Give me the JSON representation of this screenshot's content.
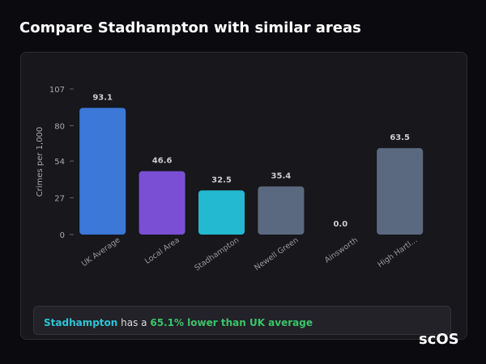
{
  "header": {
    "title": "Compare Stadhampton with similar areas"
  },
  "chart_data": {
    "type": "bar",
    "y_label": "Crimes per 1,000",
    "categories": [
      "UK Average",
      "Local Area",
      "Stadhampton",
      "Newell Green",
      "Ainsworth",
      "High Hartl..."
    ],
    "values": [
      93.1,
      46.6,
      32.5,
      35.4,
      0,
      63.5
    ],
    "value_labels": [
      "93.1",
      "46.6",
      "32.5",
      "35.4",
      "0.0",
      "63.5"
    ],
    "colors": [
      "#3b78d8",
      "#7a4fd4",
      "#23b9d0",
      "#5b6980",
      "#5b6980",
      "#5b6980"
    ],
    "ylim": [
      0,
      107
    ],
    "yticks": [
      0,
      27,
      54,
      80,
      107
    ]
  },
  "note": {
    "area": "Stadhampton",
    "text": "has a",
    "highlight": "65.1% lower than UK average"
  },
  "logo": "scOS"
}
